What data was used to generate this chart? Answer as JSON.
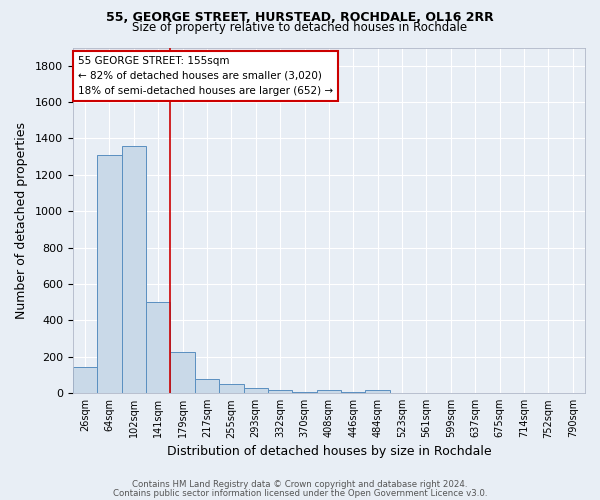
{
  "title": "55, GEORGE STREET, HURSTEAD, ROCHDALE, OL16 2RR",
  "subtitle": "Size of property relative to detached houses in Rochdale",
  "xlabel": "Distribution of detached houses by size in Rochdale",
  "ylabel": "Number of detached properties",
  "bar_labels": [
    "26sqm",
    "64sqm",
    "102sqm",
    "141sqm",
    "179sqm",
    "217sqm",
    "255sqm",
    "293sqm",
    "332sqm",
    "370sqm",
    "408sqm",
    "446sqm",
    "484sqm",
    "523sqm",
    "561sqm",
    "599sqm",
    "637sqm",
    "675sqm",
    "714sqm",
    "752sqm",
    "790sqm"
  ],
  "bar_values": [
    143,
    1310,
    1360,
    500,
    225,
    80,
    48,
    28,
    20,
    5,
    15,
    5,
    20,
    0,
    0,
    0,
    0,
    0,
    0,
    0,
    0
  ],
  "bar_color": "#c9d9e8",
  "bar_edge_color": "#5a8fc0",
  "bg_color": "#e8eef5",
  "grid_color": "#ffffff",
  "vline_x": 3.5,
  "vline_color": "#cc0000",
  "annotation_text": "55 GEORGE STREET: 155sqm\n← 82% of detached houses are smaller (3,020)\n18% of semi-detached houses are larger (652) →",
  "annotation_box_color": "#ffffff",
  "annotation_box_edge": "#cc0000",
  "footer_line1": "Contains HM Land Registry data © Crown copyright and database right 2024.",
  "footer_line2": "Contains public sector information licensed under the Open Government Licence v3.0.",
  "ylim": [
    0,
    1900
  ],
  "yticks": [
    0,
    200,
    400,
    600,
    800,
    1000,
    1200,
    1400,
    1600,
    1800
  ],
  "title_fontsize": 9,
  "subtitle_fontsize": 8.5
}
